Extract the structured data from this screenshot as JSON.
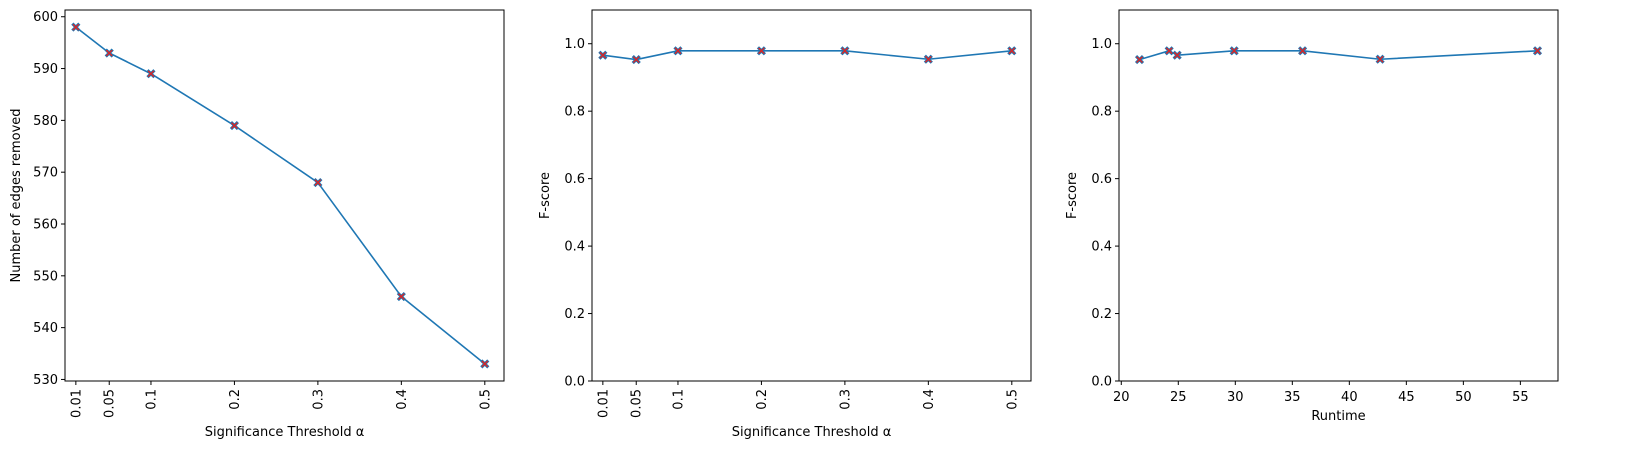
{
  "chart_data": [
    {
      "type": "line",
      "title": "",
      "xlabel": "Significance Threshold α",
      "ylabel": "Number of edges removed",
      "x": [
        0.01,
        0.05,
        0.1,
        0.2,
        0.3,
        0.4,
        0.5
      ],
      "x_tick_labels": [
        "0.01",
        "0.05",
        "0.1",
        "0.2",
        "0.3",
        "0.4",
        "0.5"
      ],
      "x_tick_rotation": "vertical",
      "y": [
        598,
        593,
        589,
        579,
        568,
        546,
        533
      ],
      "xlim": [
        -0.003,
        0.523
      ],
      "ylim": [
        529.7,
        601.3
      ],
      "yticks": [
        530,
        540,
        550,
        560,
        570,
        580,
        590,
        600
      ],
      "line_color": "#1f77b4",
      "marker": "x",
      "marker_color": "#d62728",
      "grid": false
    },
    {
      "type": "line",
      "title": "",
      "xlabel": "Significance Threshold α",
      "ylabel": "F-score",
      "x": [
        0.01,
        0.05,
        0.1,
        0.2,
        0.3,
        0.4,
        0.5
      ],
      "x_tick_labels": [
        "0.01",
        "0.05",
        "0.1",
        "0.2",
        "0.3",
        "0.4",
        "0.5"
      ],
      "x_tick_rotation": "vertical",
      "y": [
        0.966,
        0.953,
        0.979,
        0.979,
        0.979,
        0.954,
        0.979
      ],
      "xlim": [
        -0.003,
        0.523
      ],
      "ylim": [
        0.0,
        1.1
      ],
      "yticks": [
        0.0,
        0.2,
        0.4,
        0.6,
        0.8,
        1.0
      ],
      "ytick_labels": [
        "0.0",
        "0.2",
        "0.4",
        "0.6",
        "0.8",
        "1.0"
      ],
      "line_color": "#1f77b4",
      "marker": "x",
      "marker_color": "#d62728",
      "grid": false
    },
    {
      "type": "line",
      "title": "",
      "xlabel": "Runtime",
      "ylabel": "F-score",
      "x": [
        21.6,
        24.2,
        24.9,
        29.9,
        35.9,
        42.7,
        56.5
      ],
      "y": [
        0.953,
        0.979,
        0.966,
        0.979,
        0.979,
        0.954,
        0.979
      ],
      "xlim": [
        19.8,
        58.3
      ],
      "xticks": [
        20,
        25,
        30,
        35,
        40,
        45,
        50,
        55
      ],
      "x_tick_labels": [
        "20",
        "25",
        "30",
        "35",
        "40",
        "45",
        "50",
        "55"
      ],
      "x_tick_rotation": "horizontal",
      "ylim": [
        0.0,
        1.1
      ],
      "yticks": [
        0.0,
        0.2,
        0.4,
        0.6,
        0.8,
        1.0
      ],
      "ytick_labels": [
        "0.0",
        "0.2",
        "0.4",
        "0.6",
        "0.8",
        "1.0"
      ],
      "line_color": "#1f77b4",
      "marker": "x",
      "marker_color": "#d62728",
      "grid": false
    }
  ]
}
